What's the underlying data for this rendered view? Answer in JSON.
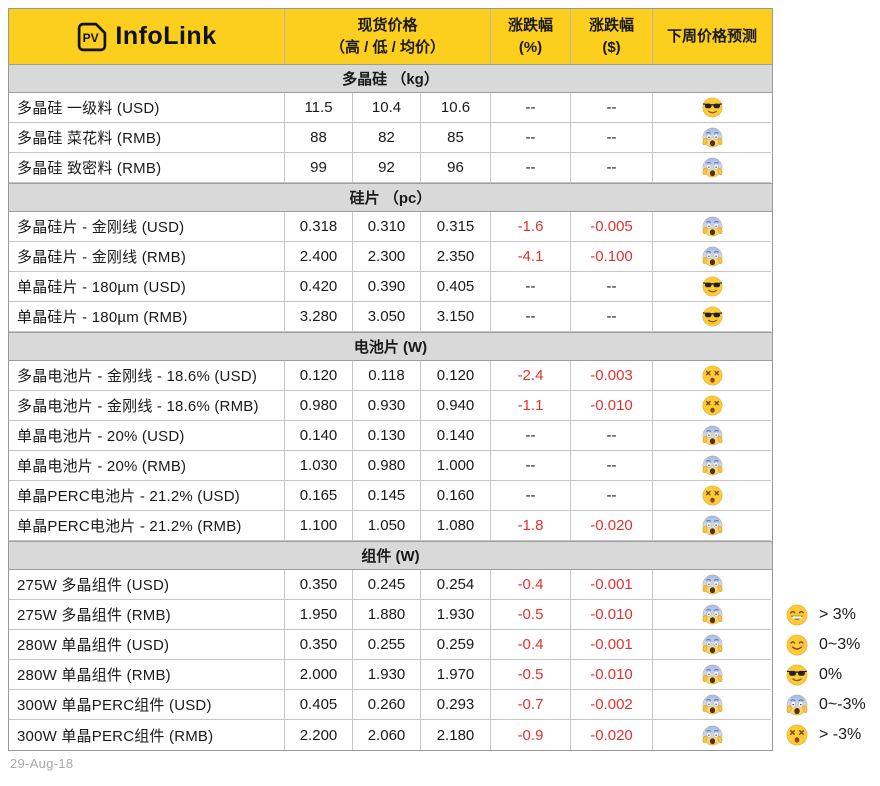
{
  "header": {
    "logo_mark": "PV",
    "logo_text": "InfoLink",
    "price_title": "现货价格",
    "price_sub": "（高 / 低 / 均价）",
    "change_pct_title": "涨跌幅",
    "change_pct_unit": "(%)",
    "change_usd_title": "涨跌幅",
    "change_usd_unit": "($)",
    "forecast_title": "下周价格预测"
  },
  "sections": [
    {
      "title": "多晶硅 （kg）",
      "rows": [
        {
          "name": "多晶硅 一级料 (USD)",
          "high": "11.5",
          "low": "10.4",
          "avg": "10.6",
          "chg_pct": "--",
          "chg_usd": "--",
          "forecast": "cool"
        },
        {
          "name": "多晶硅 菜花料 (RMB)",
          "high": "88",
          "low": "82",
          "avg": "85",
          "chg_pct": "--",
          "chg_usd": "--",
          "forecast": "scream"
        },
        {
          "name": "多晶硅 致密料 (RMB)",
          "high": "99",
          "low": "92",
          "avg": "96",
          "chg_pct": "--",
          "chg_usd": "--",
          "forecast": "scream"
        }
      ]
    },
    {
      "title": "硅片 （pc）",
      "rows": [
        {
          "name": "多晶硅片 - 金刚线 (USD)",
          "high": "0.318",
          "low": "0.310",
          "avg": "0.315",
          "chg_pct": "-1.6",
          "chg_usd": "-0.005",
          "forecast": "scream"
        },
        {
          "name": "多晶硅片 - 金刚线 (RMB)",
          "high": "2.400",
          "low": "2.300",
          "avg": "2.350",
          "chg_pct": "-4.1",
          "chg_usd": "-0.100",
          "forecast": "scream"
        },
        {
          "name": "单晶硅片 - 180µm (USD)",
          "high": "0.420",
          "low": "0.390",
          "avg": "0.405",
          "chg_pct": "--",
          "chg_usd": "--",
          "forecast": "cool"
        },
        {
          "name": "单晶硅片 - 180µm (RMB)",
          "high": "3.280",
          "low": "3.050",
          "avg": "3.150",
          "chg_pct": "--",
          "chg_usd": "--",
          "forecast": "cool"
        }
      ]
    },
    {
      "title": "电池片 (W)",
      "rows": [
        {
          "name": "多晶电池片 - 金刚线 - 18.6% (USD)",
          "high": "0.120",
          "low": "0.118",
          "avg": "0.120",
          "chg_pct": "-2.4",
          "chg_usd": "-0.003",
          "forecast": "dizzy"
        },
        {
          "name": "多晶电池片 - 金刚线 - 18.6% (RMB)",
          "high": "0.980",
          "low": "0.930",
          "avg": "0.940",
          "chg_pct": "-1.1",
          "chg_usd": "-0.010",
          "forecast": "dizzy"
        },
        {
          "name": "单晶电池片 - 20% (USD)",
          "high": "0.140",
          "low": "0.130",
          "avg": "0.140",
          "chg_pct": "--",
          "chg_usd": "--",
          "forecast": "scream"
        },
        {
          "name": "单晶电池片 - 20% (RMB)",
          "high": "1.030",
          "low": "0.980",
          "avg": "1.000",
          "chg_pct": "--",
          "chg_usd": "--",
          "forecast": "scream"
        },
        {
          "name": "单晶PERC电池片 - 21.2% (USD)",
          "high": "0.165",
          "low": "0.145",
          "avg": "0.160",
          "chg_pct": "--",
          "chg_usd": "--",
          "forecast": "dizzy"
        },
        {
          "name": "单晶PERC电池片 - 21.2% (RMB)",
          "high": "1.100",
          "low": "1.050",
          "avg": "1.080",
          "chg_pct": "-1.8",
          "chg_usd": "-0.020",
          "forecast": "scream"
        }
      ]
    },
    {
      "title": "组件 (W)",
      "rows": [
        {
          "name": "275W 多晶组件 (USD)",
          "high": "0.350",
          "low": "0.245",
          "avg": "0.254",
          "chg_pct": "-0.4",
          "chg_usd": "-0.001",
          "forecast": "scream"
        },
        {
          "name": "275W 多晶组件 (RMB)",
          "high": "1.950",
          "low": "1.880",
          "avg": "1.930",
          "chg_pct": "-0.5",
          "chg_usd": "-0.010",
          "forecast": "scream"
        },
        {
          "name": "280W 单晶组件 (USD)",
          "high": "0.350",
          "low": "0.255",
          "avg": "0.259",
          "chg_pct": "-0.4",
          "chg_usd": "-0.001",
          "forecast": "scream"
        },
        {
          "name": "280W 单晶组件 (RMB)",
          "high": "2.000",
          "low": "1.930",
          "avg": "1.970",
          "chg_pct": "-0.5",
          "chg_usd": "-0.010",
          "forecast": "scream"
        },
        {
          "name": "300W 单晶PERC组件 (USD)",
          "high": "0.405",
          "low": "0.260",
          "avg": "0.293",
          "chg_pct": "-0.7",
          "chg_usd": "-0.002",
          "forecast": "scream"
        },
        {
          "name": "300W 单晶PERC组件 (RMB)",
          "high": "2.200",
          "low": "2.060",
          "avg": "2.180",
          "chg_pct": "-0.9",
          "chg_usd": "-0.020",
          "forecast": "scream"
        }
      ]
    }
  ],
  "legend": [
    {
      "emoji": "grin",
      "label": "> 3%"
    },
    {
      "emoji": "smile",
      "label": "0~3%"
    },
    {
      "emoji": "cool",
      "label": "0%"
    },
    {
      "emoji": "scream",
      "label": "0~-3%"
    },
    {
      "emoji": "dizzy",
      "label": "> -3%"
    }
  ],
  "footer": {
    "date": "29-Aug-18"
  },
  "colors": {
    "header_yellow": "#FCCE1D",
    "section_gray": "#D9D9D9",
    "negative_red": "#E03231",
    "border_gray": "#999999",
    "footer_gray": "#A8A8A8"
  }
}
